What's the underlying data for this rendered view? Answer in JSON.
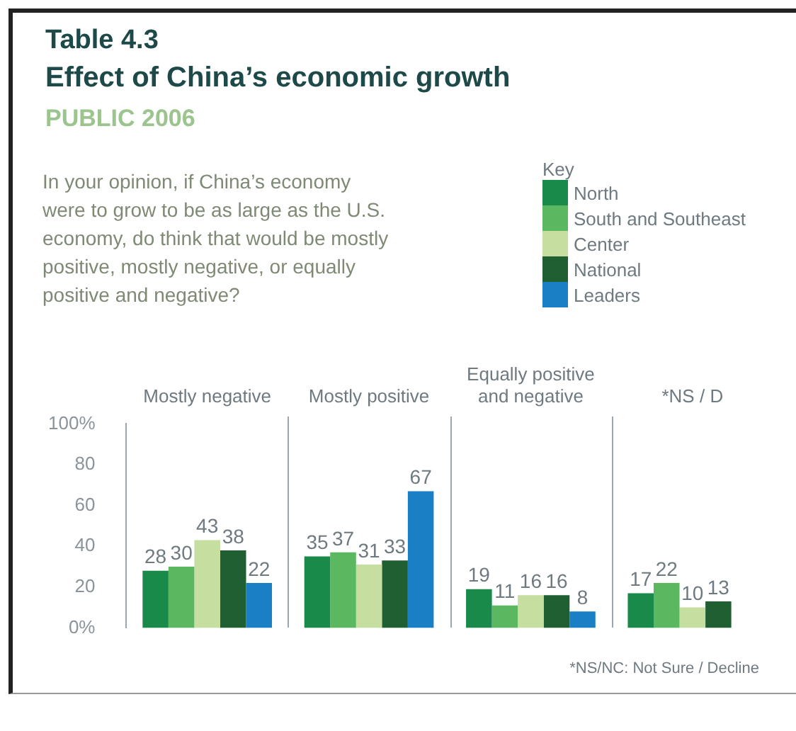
{
  "chart_data": {
    "type": "bar",
    "title": "Effect of China’s economic growth",
    "subtitle": "PUBLIC 2006",
    "annotations": [
      "Table 4.3",
      "In your opinion, if China’s economy were to grow to be as large as the U.S. economy, do think that would be mostly positive, mostly negative, or equally positive and negative?",
      "*NS/NC: Not Sure / Decline"
    ],
    "categories": [
      "Mostly negative",
      "Mostly positive",
      "Equally positive and negative",
      "*NS / D"
    ],
    "series": [
      {
        "name": "North",
        "color": "#1a8a4a",
        "values": [
          28,
          35,
          19,
          17
        ]
      },
      {
        "name": "South and Southeast",
        "color": "#5cb860",
        "values": [
          30,
          37,
          11,
          22
        ]
      },
      {
        "name": "Center",
        "color": "#c6dea0",
        "values": [
          43,
          31,
          16,
          10
        ]
      },
      {
        "name": "National",
        "color": "#1f5f32",
        "values": [
          38,
          33,
          16,
          13
        ]
      },
      {
        "name": "Leaders",
        "color": "#1a7fc4",
        "values": [
          22,
          67,
          8,
          null
        ]
      }
    ],
    "legend_title": "Key",
    "legend": "top right",
    "ylim": [
      0,
      100
    ],
    "yticks": [
      {
        "value": 0,
        "label": "0%"
      },
      20,
      40,
      60,
      80,
      {
        "value": 100,
        "label": "100%"
      }
    ],
    "data_labels": true,
    "grid": false
  }
}
